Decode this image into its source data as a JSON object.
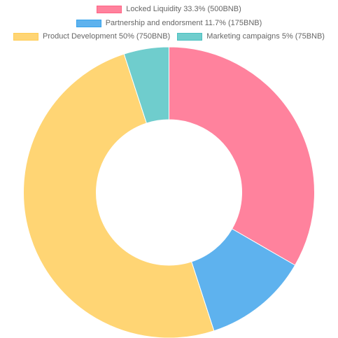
{
  "chart_data": {
    "type": "pie",
    "style": "doughnut",
    "legend_position": "top",
    "series": [
      {
        "name": "Locked Liquidity 33.3% (500BNB)",
        "value": 500,
        "color": "#FF829D",
        "border_color": "#FF6384"
      },
      {
        "name": "Partnership and endorsment 11.7% (175BNB)",
        "value": 175,
        "color": "#5EB2EE",
        "border_color": "#36A2EB"
      },
      {
        "name": "Product Development 50% (750BNB)",
        "value": 750,
        "color": "#FFD574",
        "border_color": "#FFCD56"
      },
      {
        "name": "Marketing campaigns 5% (75BNB)",
        "value": 75,
        "color": "#6FCDCD",
        "border_color": "#4BC0C0"
      }
    ]
  }
}
